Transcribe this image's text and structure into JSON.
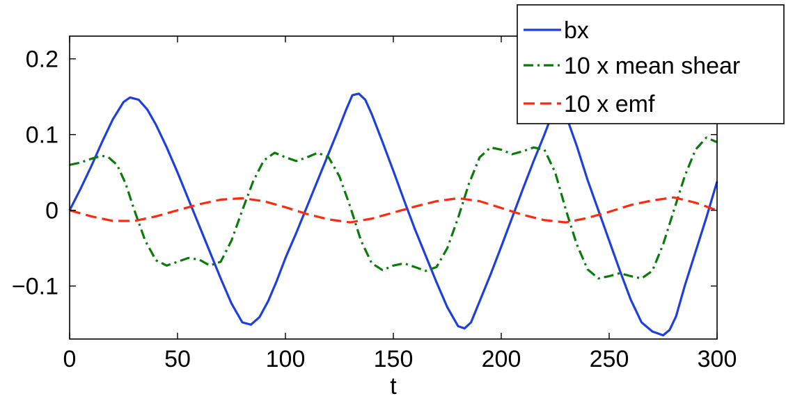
{
  "chart_data": {
    "type": "line",
    "title": "",
    "xlabel": "t",
    "ylabel": "",
    "xlim": [
      0,
      300
    ],
    "ylim": [
      -0.17,
      0.23
    ],
    "xticks": [
      0,
      50,
      100,
      150,
      200,
      250,
      300
    ],
    "xtick_labels": [
      "0",
      "50",
      "100",
      "150",
      "200",
      "250",
      "300"
    ],
    "yticks": [
      -0.1,
      0,
      0.1,
      0.2
    ],
    "ytick_labels": [
      "−0.1",
      "0",
      "0.1",
      "0.2"
    ],
    "grid": false,
    "legend_position": "top-right",
    "series": [
      {
        "name": "bx",
        "color": "#1f3fdc",
        "style": "solid",
        "x": [
          0,
          5,
          10,
          15,
          20,
          25,
          28,
          32,
          36,
          40,
          45,
          50,
          55,
          60,
          65,
          70,
          75,
          80,
          84,
          88,
          92,
          96,
          100,
          105,
          110,
          115,
          120,
          125,
          128,
          131,
          134,
          137,
          140,
          145,
          150,
          155,
          160,
          165,
          170,
          175,
          180,
          183,
          186,
          190,
          195,
          200,
          205,
          210,
          215,
          220,
          222,
          224,
          226,
          230,
          235,
          240,
          245,
          250,
          255,
          260,
          265,
          270,
          275,
          278,
          281,
          285,
          290,
          295,
          300
        ],
        "y": [
          0,
          0.028,
          0.058,
          0.09,
          0.12,
          0.143,
          0.149,
          0.146,
          0.133,
          0.113,
          0.083,
          0.05,
          0.015,
          -0.02,
          -0.055,
          -0.09,
          -0.123,
          -0.148,
          -0.151,
          -0.141,
          -0.12,
          -0.093,
          -0.063,
          -0.03,
          0.005,
          0.04,
          0.075,
          0.11,
          0.132,
          0.152,
          0.154,
          0.146,
          0.127,
          0.09,
          0.052,
          0.013,
          -0.025,
          -0.06,
          -0.095,
          -0.128,
          -0.153,
          -0.156,
          -0.148,
          -0.12,
          -0.085,
          -0.048,
          -0.01,
          0.028,
          0.065,
          0.1,
          0.115,
          0.128,
          0.135,
          0.125,
          0.085,
          0.04,
          0.0,
          -0.04,
          -0.08,
          -0.118,
          -0.148,
          -0.16,
          -0.165,
          -0.158,
          -0.14,
          -0.1,
          -0.055,
          -0.01,
          0.038
        ]
      },
      {
        "name": "10 x mean shear",
        "color": "#0a7a0a",
        "style": "dashdot",
        "x": [
          0,
          5,
          10,
          15,
          18,
          22,
          26,
          30,
          35,
          40,
          45,
          50,
          55,
          60,
          65,
          70,
          75,
          80,
          85,
          90,
          95,
          100,
          105,
          110,
          115,
          120,
          125,
          130,
          135,
          140,
          145,
          150,
          155,
          160,
          165,
          170,
          175,
          180,
          185,
          190,
          195,
          200,
          205,
          210,
          215,
          220,
          225,
          230,
          235,
          240,
          245,
          250,
          255,
          260,
          265,
          270,
          275,
          280,
          285,
          290,
          295,
          300
        ],
        "y": [
          0.06,
          0.063,
          0.068,
          0.072,
          0.07,
          0.06,
          0.035,
          0.0,
          -0.04,
          -0.066,
          -0.073,
          -0.068,
          -0.063,
          -0.065,
          -0.073,
          -0.068,
          -0.04,
          0.0,
          0.038,
          0.066,
          0.076,
          0.07,
          0.065,
          0.07,
          0.076,
          0.07,
          0.045,
          0.005,
          -0.04,
          -0.07,
          -0.079,
          -0.073,
          -0.07,
          -0.075,
          -0.08,
          -0.075,
          -0.05,
          -0.01,
          0.035,
          0.07,
          0.083,
          0.08,
          0.074,
          0.078,
          0.083,
          0.08,
          0.05,
          0.0,
          -0.045,
          -0.078,
          -0.09,
          -0.087,
          -0.083,
          -0.087,
          -0.09,
          -0.08,
          -0.045,
          0.0,
          0.045,
          0.08,
          0.096,
          0.09
        ]
      },
      {
        "name": "10 x emf",
        "color": "#ff2a10",
        "style": "dashed",
        "x": [
          0,
          10,
          20,
          30,
          40,
          50,
          60,
          70,
          80,
          90,
          100,
          110,
          120,
          130,
          140,
          150,
          160,
          170,
          180,
          190,
          200,
          210,
          220,
          230,
          240,
          250,
          260,
          270,
          280,
          290,
          300
        ],
        "y": [
          0,
          -0.008,
          -0.014,
          -0.014,
          -0.008,
          0,
          0.008,
          0.014,
          0.016,
          0.012,
          0.004,
          -0.005,
          -0.012,
          -0.016,
          -0.011,
          -0.003,
          0.005,
          0.012,
          0.016,
          0.012,
          0.003,
          -0.006,
          -0.013,
          -0.016,
          -0.01,
          -0.002,
          0.007,
          0.013,
          0.017,
          0.01,
          0.0
        ]
      }
    ]
  }
}
